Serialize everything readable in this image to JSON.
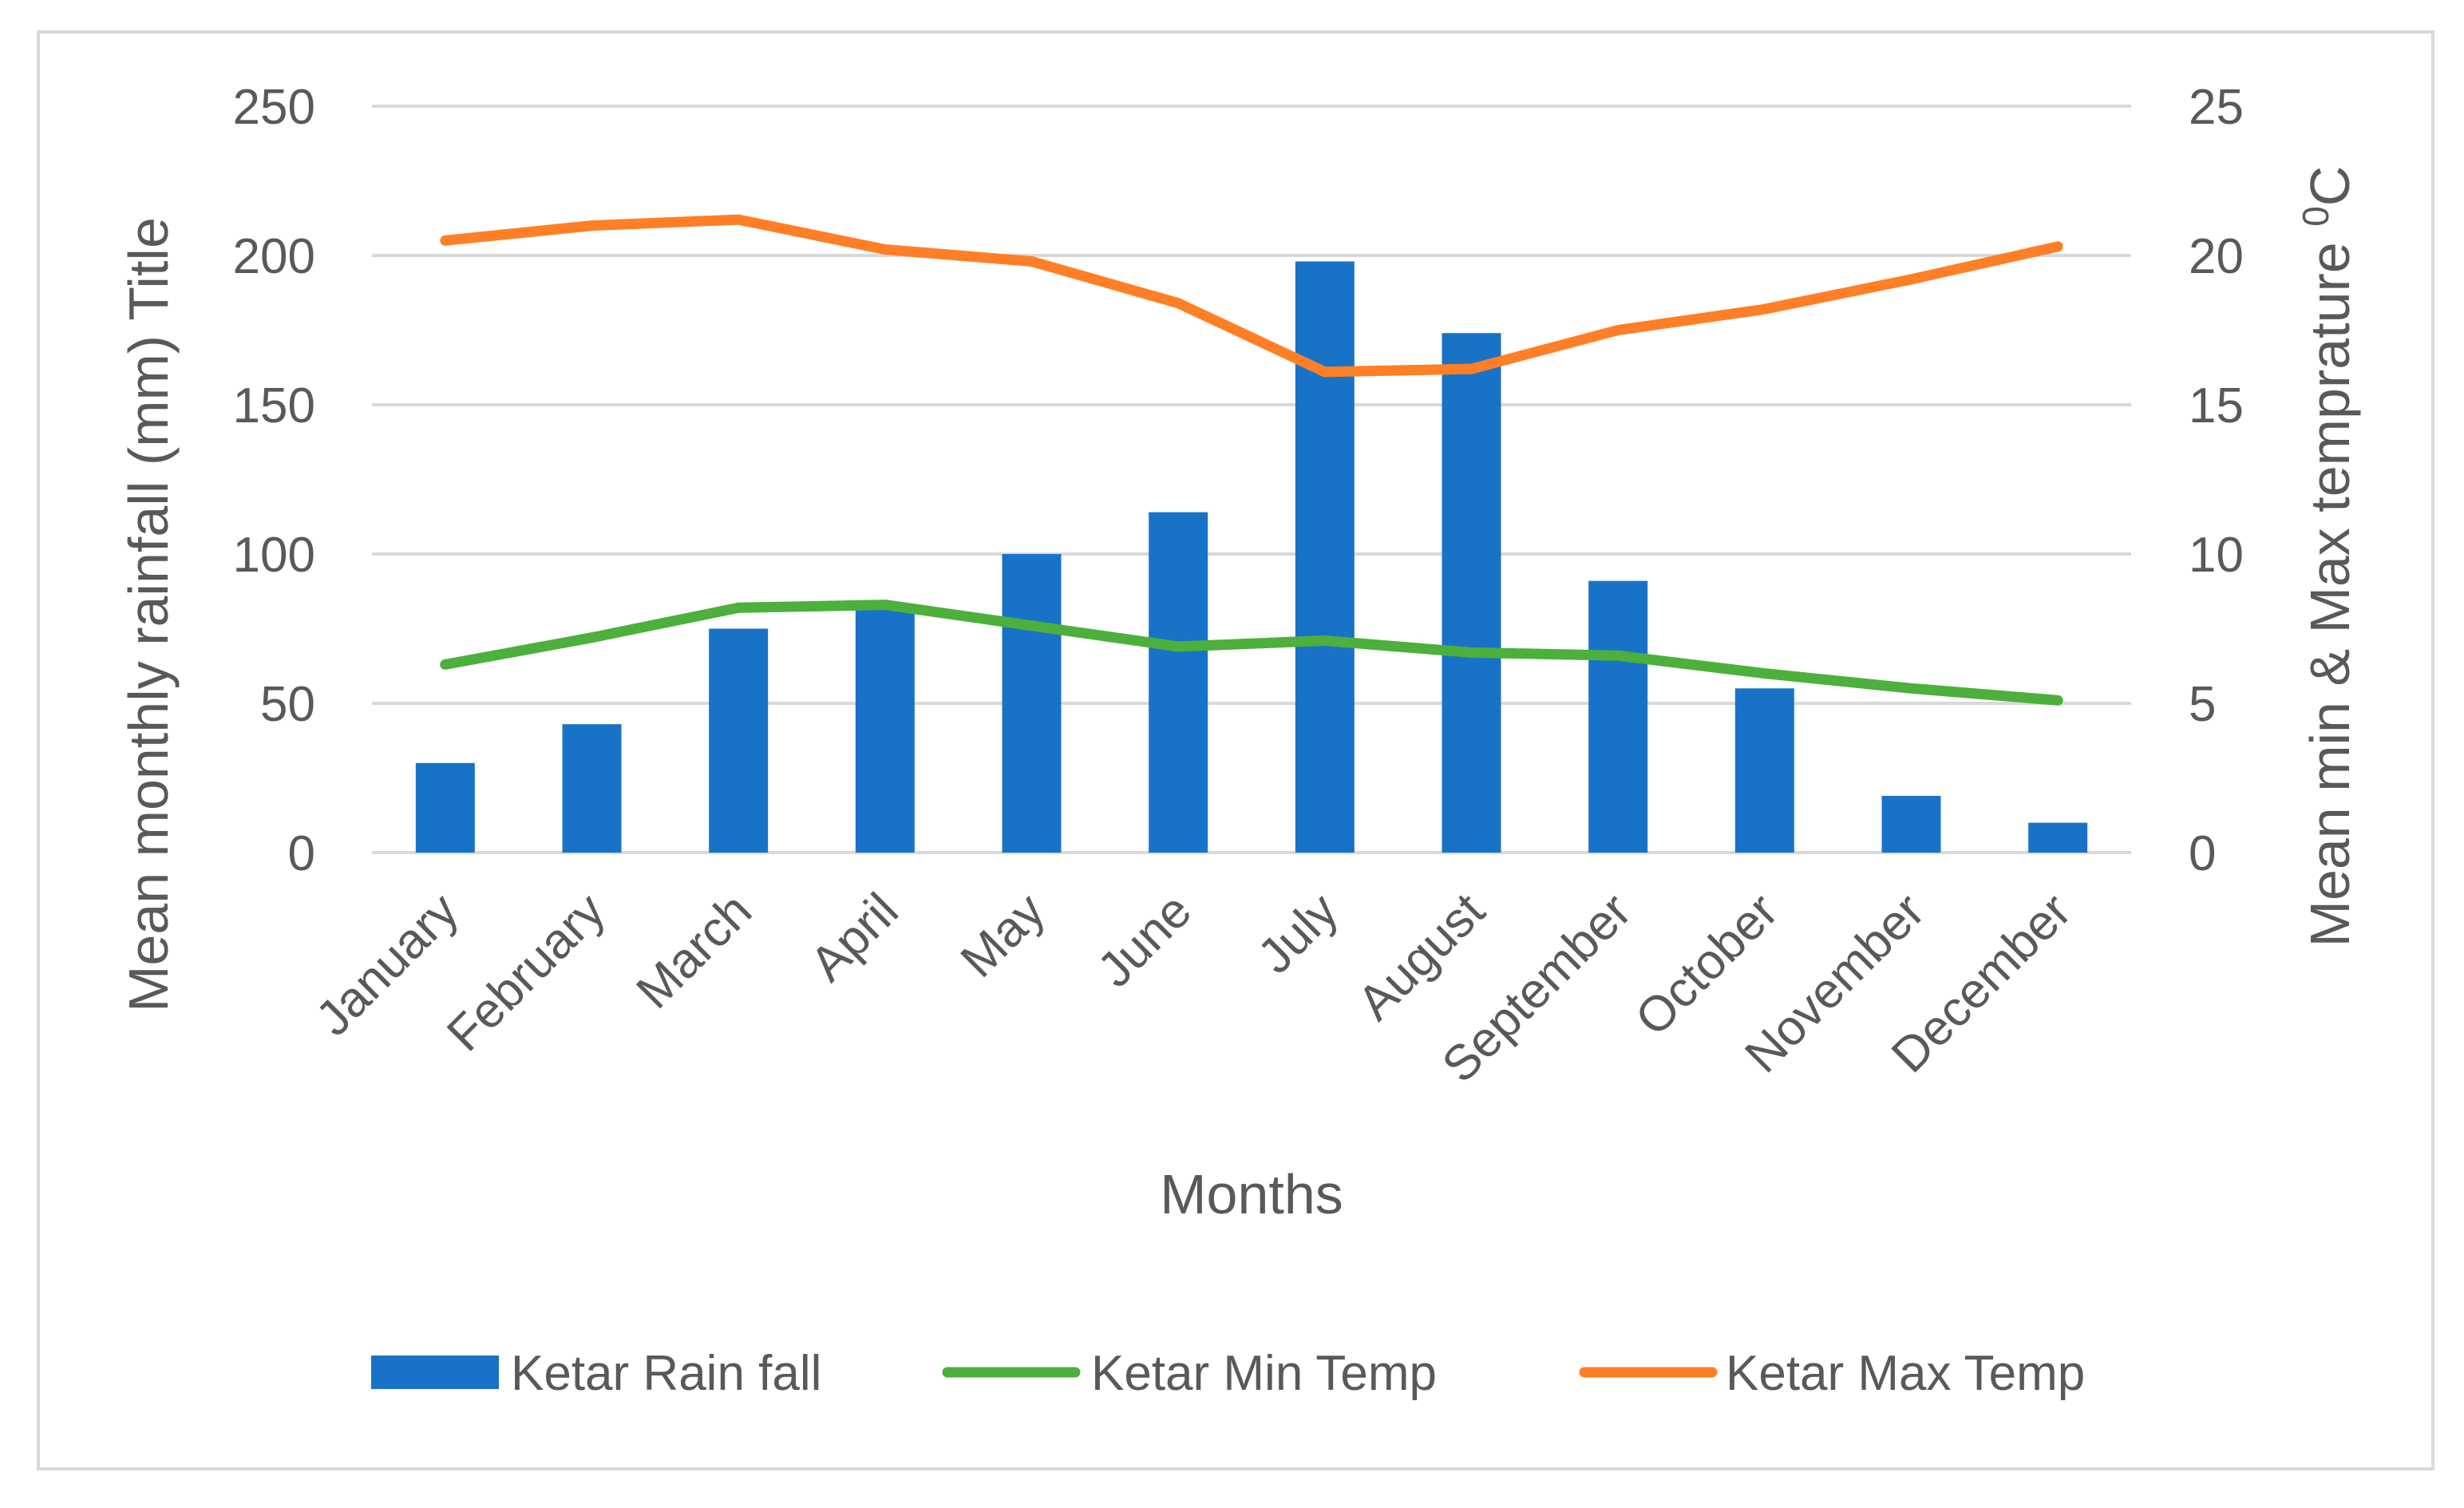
{
  "chart_data": {
    "type": "bar+line",
    "categories": [
      "January",
      "February",
      "March",
      "April",
      "May",
      "June",
      "July",
      "August",
      "September",
      "October",
      "November",
      "December"
    ],
    "series": [
      {
        "name": "Ketar Rain fall",
        "type": "bar",
        "axis": "left",
        "color": "#1873C8",
        "values": [
          30,
          43,
          75,
          83,
          100,
          114,
          198,
          174,
          91,
          55,
          19,
          10
        ]
      },
      {
        "name": "Ketar Min Temp",
        "type": "line",
        "axis": "right",
        "color": "#4DAF3C",
        "values": [
          6.3,
          7.2,
          8.2,
          8.3,
          7.6,
          6.9,
          7.1,
          6.7,
          6.6,
          6.0,
          5.5,
          5.1
        ]
      },
      {
        "name": "Ketar Max Temp",
        "type": "line",
        "axis": "right",
        "color": "#FF7F27",
        "values": [
          20.5,
          21.0,
          21.2,
          20.2,
          19.8,
          18.4,
          16.1,
          16.2,
          17.5,
          18.2,
          19.2,
          20.3
        ]
      }
    ],
    "y_left": {
      "title": "Mean monthly rainfall (mm) Title",
      "ticks": [
        "0",
        "50",
        "100",
        "150",
        "200",
        "250"
      ],
      "ylim": [
        0,
        250
      ]
    },
    "y_right": {
      "title_main": "Mean min & Max temprature ",
      "title_sup": "0",
      "title_end": "C",
      "ticks": [
        "0",
        "5",
        "10",
        "15",
        "20",
        "25"
      ],
      "ylim": [
        0,
        25
      ]
    },
    "xlabel": "Months",
    "legend_position": "bottom",
    "grid": true,
    "grid_color": "#D9D9D9",
    "frame_color": "#D9D9D9"
  }
}
